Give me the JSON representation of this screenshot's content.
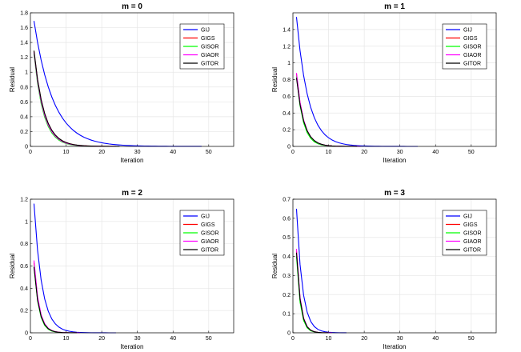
{
  "chart_data": [
    {
      "type": "line",
      "title": "m = 0",
      "xlabel": "Iteration",
      "ylabel": "Residual",
      "xlim": [
        0,
        57
      ],
      "ylim": [
        0,
        1.8
      ],
      "xticks": [
        "0",
        "10",
        "20",
        "30",
        "40",
        "50"
      ],
      "yticks": [
        "0",
        "0.2",
        "0.4",
        "0.6",
        "0.8",
        "1",
        "1.2",
        "1.4",
        "1.6",
        "1.8"
      ],
      "grid": true,
      "legend_position": "top-right",
      "series": [
        {
          "name": "GIJ",
          "color": "#0000ff",
          "start": 1.69,
          "decay": 0.83,
          "end_iter": 48
        },
        {
          "name": "GIGS",
          "color": "#ff0000",
          "start": 1.28,
          "decay": 0.7,
          "end_iter": 24
        },
        {
          "name": "GISOR",
          "color": "#00ff00",
          "start": 1.25,
          "decay": 0.68,
          "end_iter": 22
        },
        {
          "name": "GIAOR",
          "color": "#ff00ff",
          "start": 1.27,
          "decay": 0.69,
          "end_iter": 23
        },
        {
          "name": "GITOR",
          "color": "#000000",
          "start": 1.29,
          "decay": 0.7,
          "end_iter": 25
        }
      ]
    },
    {
      "type": "line",
      "title": "m = 1",
      "xlabel": "Iteration",
      "ylabel": "Residual",
      "xlim": [
        0,
        57
      ],
      "ylim": [
        0,
        1.6
      ],
      "xticks": [
        "0",
        "10",
        "20",
        "30",
        "40",
        "50"
      ],
      "yticks": [
        "0",
        "0.2",
        "0.4",
        "0.6",
        "0.8",
        "1",
        "1.2",
        "1.4"
      ],
      "grid": true,
      "legend_position": "top-right",
      "series": [
        {
          "name": "GIJ",
          "color": "#0000ff",
          "start": 1.55,
          "decay": 0.74,
          "end_iter": 35
        },
        {
          "name": "GIGS",
          "color": "#ff0000",
          "start": 0.87,
          "decay": 0.6,
          "end_iter": 18
        },
        {
          "name": "GISOR",
          "color": "#00ff00",
          "start": 0.84,
          "decay": 0.58,
          "end_iter": 16
        },
        {
          "name": "GIAOR",
          "color": "#ff00ff",
          "start": 0.88,
          "decay": 0.6,
          "end_iter": 19
        },
        {
          "name": "GITOR",
          "color": "#000000",
          "start": 0.82,
          "decay": 0.61,
          "end_iter": 18
        }
      ]
    },
    {
      "type": "line",
      "title": "m = 2",
      "xlabel": "Iteration",
      "ylabel": "Residual",
      "xlim": [
        0,
        57
      ],
      "ylim": [
        0,
        1.2
      ],
      "xticks": [
        "0",
        "10",
        "20",
        "30",
        "40",
        "50"
      ],
      "yticks": [
        "0",
        "0.2",
        "0.4",
        "0.6",
        "0.8",
        "1",
        "1.2"
      ],
      "grid": true,
      "legend_position": "top-right",
      "series": [
        {
          "name": "GIJ",
          "color": "#0000ff",
          "start": 1.16,
          "decay": 0.64,
          "end_iter": 24
        },
        {
          "name": "GIGS",
          "color": "#ff0000",
          "start": 0.63,
          "decay": 0.5,
          "end_iter": 13
        },
        {
          "name": "GISOR",
          "color": "#00ff00",
          "start": 0.6,
          "decay": 0.48,
          "end_iter": 12
        },
        {
          "name": "GIAOR",
          "color": "#ff00ff",
          "start": 0.65,
          "decay": 0.5,
          "end_iter": 14
        },
        {
          "name": "GITOR",
          "color": "#000000",
          "start": 0.59,
          "decay": 0.5,
          "end_iter": 13
        }
      ]
    },
    {
      "type": "line",
      "title": "m = 3",
      "xlabel": "Iteration",
      "ylabel": "Residual",
      "xlim": [
        0,
        57
      ],
      "ylim": [
        0,
        0.7
      ],
      "xticks": [
        "0",
        "10",
        "20",
        "30",
        "40",
        "50"
      ],
      "yticks": [
        "0",
        "0.1",
        "0.2",
        "0.3",
        "0.4",
        "0.5",
        "0.6",
        "0.7"
      ],
      "grid": true,
      "legend_position": "top-right",
      "series": [
        {
          "name": "GIJ",
          "color": "#0000ff",
          "start": 0.65,
          "decay": 0.55,
          "end_iter": 15
        },
        {
          "name": "GIGS",
          "color": "#ff0000",
          "start": 0.43,
          "decay": 0.42,
          "end_iter": 10
        },
        {
          "name": "GISOR",
          "color": "#00ff00",
          "start": 0.4,
          "decay": 0.4,
          "end_iter": 9
        },
        {
          "name": "GIAOR",
          "color": "#ff00ff",
          "start": 0.44,
          "decay": 0.42,
          "end_iter": 11
        },
        {
          "name": "GITOR",
          "color": "#000000",
          "start": 0.42,
          "decay": 0.42,
          "end_iter": 10
        }
      ]
    }
  ]
}
